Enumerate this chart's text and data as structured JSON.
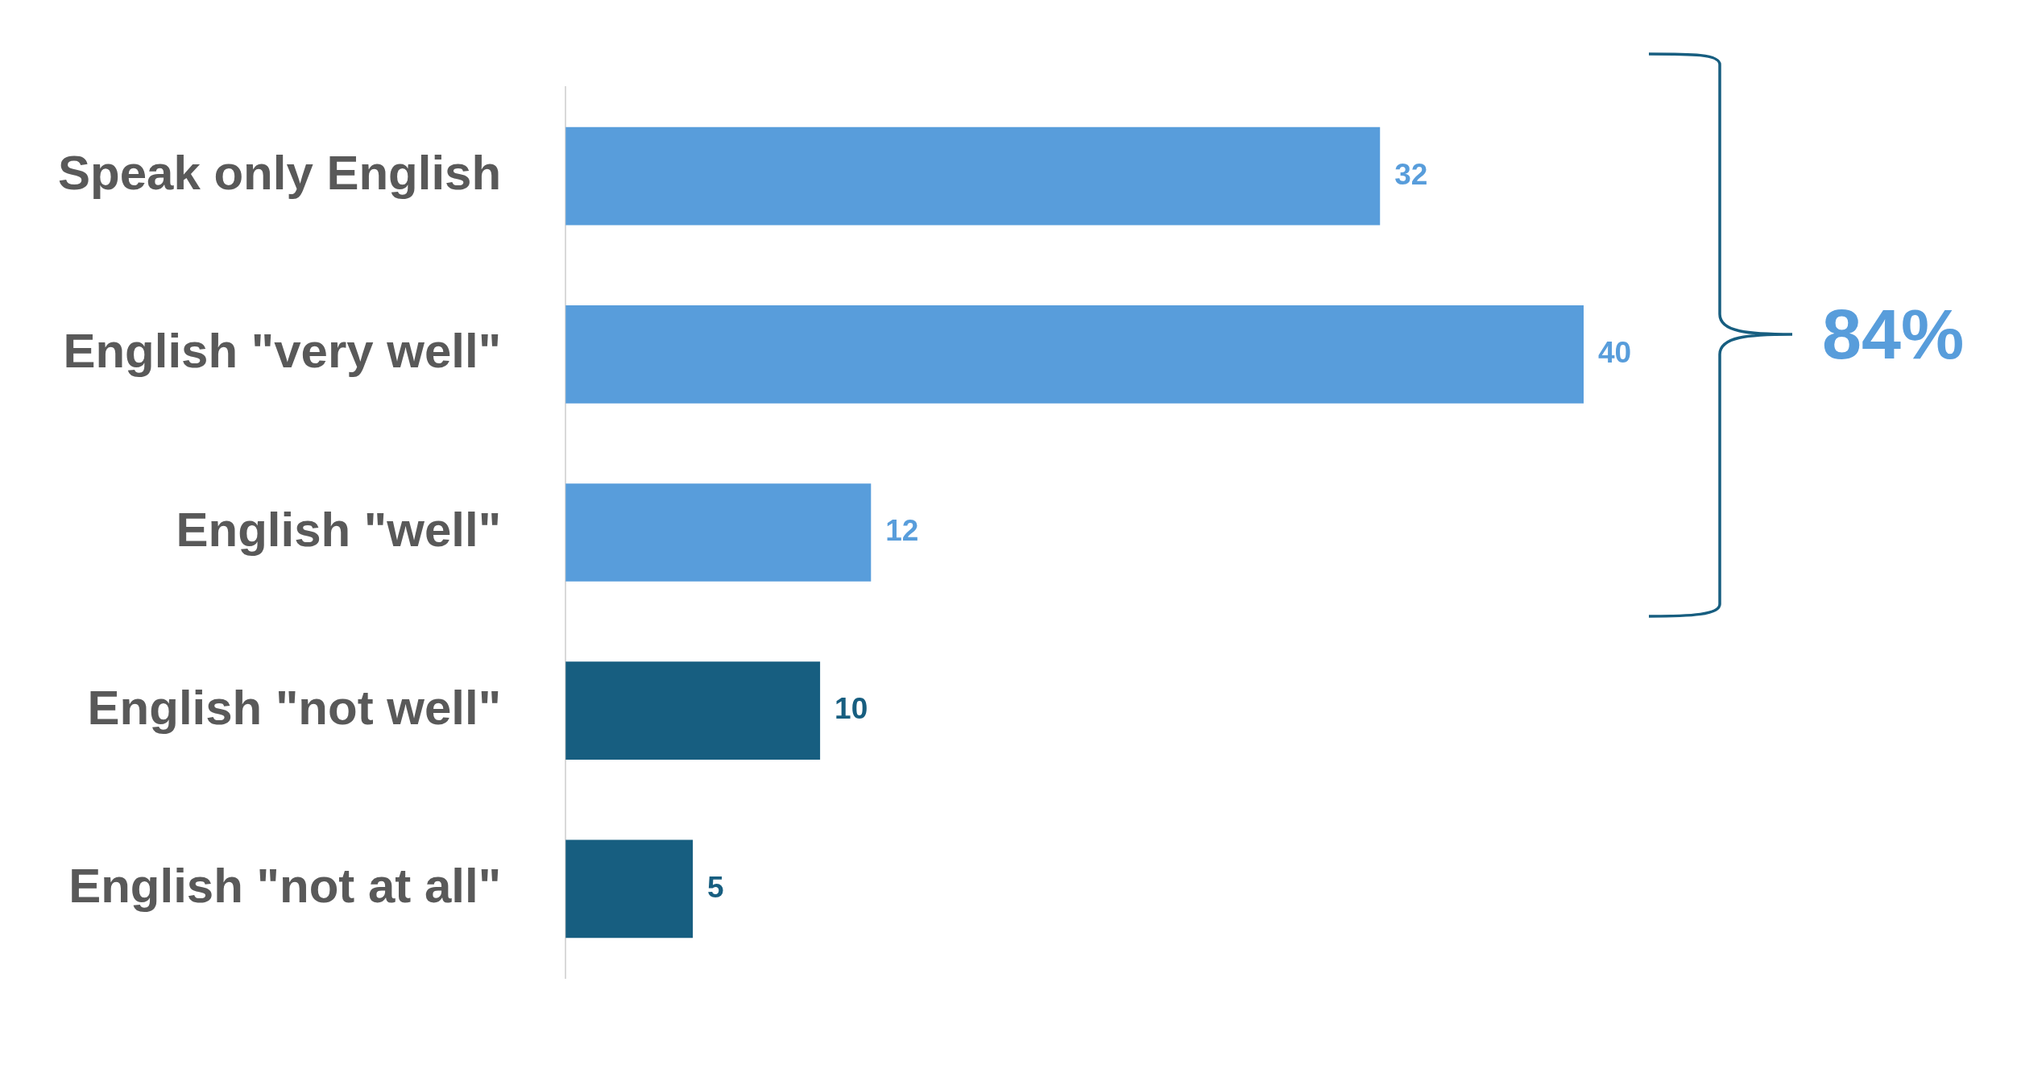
{
  "chart_data": {
    "type": "bar",
    "orientation": "horizontal",
    "categories": [
      "Speak only English",
      "English \"very well\"",
      "English \"well\"",
      "English \"not well\"",
      "English \"not at all\""
    ],
    "values": [
      32,
      40,
      12,
      10,
      5
    ],
    "colors": [
      "#589ddb",
      "#589ddb",
      "#589ddb",
      "#175e80",
      "#175e80"
    ],
    "data_labels": true,
    "legend": false,
    "tick_labels": "y",
    "annotations": [
      "84%"
    ]
  }
}
